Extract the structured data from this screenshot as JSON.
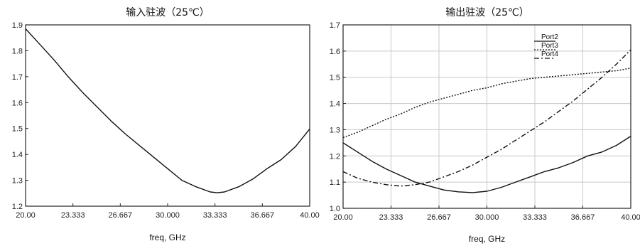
{
  "chart_data": [
    {
      "type": "line",
      "title": "输入驻波（25℃）",
      "xlabel": "freq, GHz",
      "ylabel": "",
      "xlim": [
        20.0,
        40.0
      ],
      "ylim": [
        1.2,
        1.9
      ],
      "xticks": [
        "20.00",
        "23.333",
        "26.667",
        "30.000",
        "33.333",
        "36.667",
        "40.00"
      ],
      "yticks": [
        "1.2",
        "1.3",
        "1.4",
        "1.5",
        "1.6",
        "1.7",
        "1.8",
        "1.9"
      ],
      "grid": false,
      "series": [
        {
          "name": "",
          "color": "#111111",
          "dash": "solid",
          "x": [
            20.0,
            21.0,
            22.0,
            23.0,
            24.0,
            25.0,
            26.0,
            27.0,
            28.0,
            29.0,
            30.0,
            31.0,
            32.0,
            33.0,
            33.5,
            34.0,
            35.0,
            36.0,
            37.0,
            38.0,
            39.0,
            40.0
          ],
          "y": [
            1.885,
            1.825,
            1.765,
            1.7,
            1.64,
            1.585,
            1.53,
            1.48,
            1.435,
            1.39,
            1.345,
            1.3,
            1.275,
            1.255,
            1.252,
            1.255,
            1.275,
            1.305,
            1.345,
            1.38,
            1.43,
            1.498
          ]
        }
      ]
    },
    {
      "type": "line",
      "title": "输出驻波（25℃）",
      "xlabel": "freq, GHz",
      "ylabel": "",
      "xlim": [
        20.0,
        40.0
      ],
      "ylim": [
        1.0,
        1.7
      ],
      "xticks": [
        "20.00",
        "23.333",
        "26.667",
        "30.000",
        "33.333",
        "36.667",
        "40.00"
      ],
      "yticks": [
        "1.0",
        "1.1",
        "1.2",
        "1.3",
        "1.4",
        "1.5",
        "1.6",
        "1.7"
      ],
      "grid": true,
      "legend_position": "top-right",
      "series": [
        {
          "name": "Port2",
          "color": "#111111",
          "dash": "solid",
          "x": [
            20.0,
            21.0,
            22.0,
            23.0,
            24.0,
            25.0,
            26.0,
            27.0,
            28.0,
            29.0,
            30.0,
            31.0,
            32.0,
            33.0,
            34.0,
            35.0,
            36.0,
            37.0,
            38.0,
            39.0,
            40.0
          ],
          "y": [
            1.25,
            1.215,
            1.18,
            1.15,
            1.125,
            1.1,
            1.085,
            1.07,
            1.063,
            1.06,
            1.065,
            1.08,
            1.1,
            1.12,
            1.14,
            1.155,
            1.175,
            1.2,
            1.215,
            1.24,
            1.275
          ]
        },
        {
          "name": "Port3",
          "color": "#111111",
          "dash": "dotted",
          "x": [
            20.0,
            21.0,
            22.0,
            23.0,
            24.0,
            25.0,
            26.0,
            27.0,
            28.0,
            29.0,
            30.0,
            31.0,
            32.0,
            33.0,
            34.0,
            35.0,
            36.0,
            37.0,
            38.0,
            39.0,
            40.0
          ],
          "y": [
            1.27,
            1.29,
            1.315,
            1.34,
            1.36,
            1.385,
            1.405,
            1.42,
            1.435,
            1.45,
            1.46,
            1.475,
            1.485,
            1.495,
            1.5,
            1.505,
            1.51,
            1.515,
            1.52,
            1.525,
            1.535
          ]
        },
        {
          "name": "Port4",
          "color": "#111111",
          "dash": "dashdot",
          "x": [
            20.0,
            21.0,
            22.0,
            23.0,
            24.0,
            25.0,
            26.0,
            27.0,
            28.0,
            29.0,
            30.0,
            31.0,
            32.0,
            33.0,
            34.0,
            35.0,
            36.0,
            37.0,
            38.0,
            39.0,
            40.0
          ],
          "y": [
            1.14,
            1.115,
            1.1,
            1.09,
            1.085,
            1.09,
            1.1,
            1.12,
            1.14,
            1.165,
            1.195,
            1.225,
            1.26,
            1.295,
            1.33,
            1.37,
            1.41,
            1.455,
            1.5,
            1.55,
            1.605
          ]
        }
      ]
    }
  ]
}
